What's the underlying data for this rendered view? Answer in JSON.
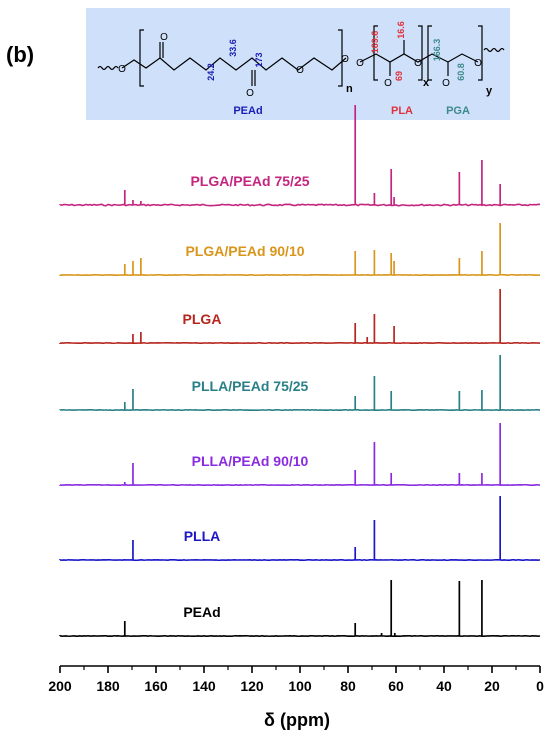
{
  "panel_label": "(b)",
  "structure": {
    "segments": [
      {
        "name": "PEAd",
        "color": "#1a1fb5"
      },
      {
        "name": "PLA",
        "color": "#e0323c"
      },
      {
        "name": "PGA",
        "color": "#3e8a8a"
      }
    ],
    "subscripts": [
      "n",
      "x",
      "y"
    ],
    "shifts": [
      {
        "label": "24.2",
        "color": "#1a1fb5"
      },
      {
        "label": "33.6",
        "color": "#1a1fb5"
      },
      {
        "label": "173",
        "color": "#1a1fb5"
      },
      {
        "label": "169.6",
        "color": "#e0323c"
      },
      {
        "label": "69",
        "color": "#e0323c"
      },
      {
        "label": "16.6",
        "color": "#e0323c"
      },
      {
        "label": "166.3",
        "color": "#3e8a8a"
      },
      {
        "label": "60.8",
        "color": "#3e8a8a"
      }
    ],
    "background": "#cfe0fa"
  },
  "chart_data": {
    "type": "line",
    "xlabel": "δ (ppm)",
    "xlim": [
      200,
      0
    ],
    "x_ticks": [
      "200",
      "180",
      "160",
      "140",
      "120",
      "100",
      "80",
      "60",
      "40",
      "20",
      "0"
    ],
    "series": [
      {
        "name": "PLGA/PEAd 75/25",
        "color": "#c4257f",
        "peaks": [
          [
            173,
            0.15
          ],
          [
            169.6,
            0.05
          ],
          [
            166.3,
            0.04
          ],
          [
            77,
            1.0
          ],
          [
            69,
            0.12
          ],
          [
            62,
            0.36
          ],
          [
            60.8,
            0.08
          ],
          [
            33.6,
            0.33
          ],
          [
            24.2,
            0.45
          ],
          [
            16.6,
            0.21
          ]
        ]
      },
      {
        "name": "PLGA/PEAd 90/10",
        "color": "#d9961c",
        "peaks": [
          [
            173,
            0.11
          ],
          [
            169.6,
            0.14
          ],
          [
            166.3,
            0.17
          ],
          [
            77,
            0.24
          ],
          [
            69,
            0.25
          ],
          [
            62,
            0.22
          ],
          [
            60.8,
            0.14
          ],
          [
            33.6,
            0.17
          ],
          [
            24.2,
            0.24
          ],
          [
            16.6,
            0.52
          ]
        ]
      },
      {
        "name": "PLGA",
        "color": "#b5261f",
        "peaks": [
          [
            169.6,
            0.09
          ],
          [
            166.3,
            0.11
          ],
          [
            77,
            0.2
          ],
          [
            72,
            0.06
          ],
          [
            69,
            0.29
          ],
          [
            60.8,
            0.17
          ],
          [
            16.6,
            0.54
          ]
        ]
      },
      {
        "name": "PLLA/PEAd 75/25",
        "color": "#2a8087",
        "peaks": [
          [
            173,
            0.08
          ],
          [
            169.6,
            0.21
          ],
          [
            77,
            0.14
          ],
          [
            69,
            0.34
          ],
          [
            62,
            0.19
          ],
          [
            33.6,
            0.19
          ],
          [
            24.2,
            0.2
          ],
          [
            16.6,
            0.55
          ]
        ]
      },
      {
        "name": "PLLA/PEAd 90/10",
        "color": "#8a2be2",
        "peaks": [
          [
            173,
            0.03
          ],
          [
            169.6,
            0.22
          ],
          [
            77,
            0.15
          ],
          [
            69,
            0.43
          ],
          [
            62,
            0.12
          ],
          [
            33.6,
            0.12
          ],
          [
            24.2,
            0.12
          ],
          [
            16.6,
            0.62
          ]
        ]
      },
      {
        "name": "PLLA",
        "color": "#1b17c8",
        "peaks": [
          [
            169.6,
            0.2
          ],
          [
            77,
            0.13
          ],
          [
            69,
            0.4
          ],
          [
            16.6,
            0.64
          ]
        ]
      },
      {
        "name": "PEAd",
        "color": "#000000",
        "peaks": [
          [
            173,
            0.15
          ],
          [
            77,
            0.13
          ],
          [
            66,
            0.03
          ],
          [
            62,
            0.56
          ],
          [
            60.5,
            0.03
          ],
          [
            33.6,
            0.55
          ],
          [
            24.2,
            0.56
          ]
        ]
      }
    ]
  }
}
